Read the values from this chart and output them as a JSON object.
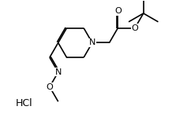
{
  "background": "#ffffff",
  "figsize": [
    2.23,
    1.54
  ],
  "dpi": 100,
  "bond_lw": 1.2,
  "font_size": 7,
  "HCl_text": "HCl",
  "N_label": "N",
  "O_carbonyl": "O",
  "O_ester": "O",
  "N_oxime": "N",
  "O_oxime": "O"
}
